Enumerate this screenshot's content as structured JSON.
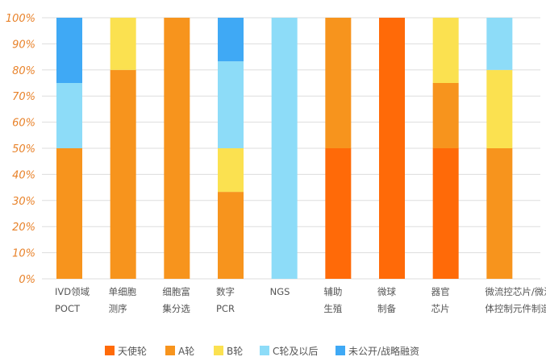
{
  "chart_data": {
    "type": "bar",
    "stacked": true,
    "categories": [
      [
        "IVD领域",
        "POCT"
      ],
      [
        "单细胞",
        "测序"
      ],
      [
        "细胞富",
        "集分选"
      ],
      [
        "数字",
        "PCR"
      ],
      [
        "NGS"
      ],
      [
        "辅助",
        "生殖"
      ],
      [
        "微球",
        "制备"
      ],
      [
        "器官",
        "芯片"
      ],
      [
        "微流控芯片/微流",
        "体控制元件制造"
      ]
    ],
    "series": [
      {
        "name": "天使轮",
        "color": "#FF6A08",
        "values": [
          0,
          0,
          0,
          0,
          0,
          50,
          100,
          50,
          0
        ]
      },
      {
        "name": "A轮",
        "color": "#F7941D",
        "values": [
          50,
          80,
          100,
          33.3,
          0,
          50,
          0,
          25,
          50
        ]
      },
      {
        "name": "B轮",
        "color": "#FBE150",
        "values": [
          0,
          20,
          0,
          16.7,
          0,
          0,
          0,
          25,
          30
        ]
      },
      {
        "name": "C轮及以后",
        "color": "#8DDCF8",
        "values": [
          25,
          0,
          0,
          33.3,
          100,
          0,
          0,
          0,
          20
        ]
      },
      {
        "name": "未公开/战略融资",
        "color": "#3FA9F5",
        "values": [
          25,
          0,
          0,
          16.7,
          0,
          0,
          0,
          0,
          0
        ]
      }
    ],
    "yticks": [
      "0%",
      "10%",
      "20%",
      "30%",
      "40%",
      "50%",
      "60%",
      "70%",
      "80%",
      "90%",
      "100%"
    ],
    "ylim": [
      0,
      100
    ],
    "grid": true,
    "legend": "bottom"
  }
}
